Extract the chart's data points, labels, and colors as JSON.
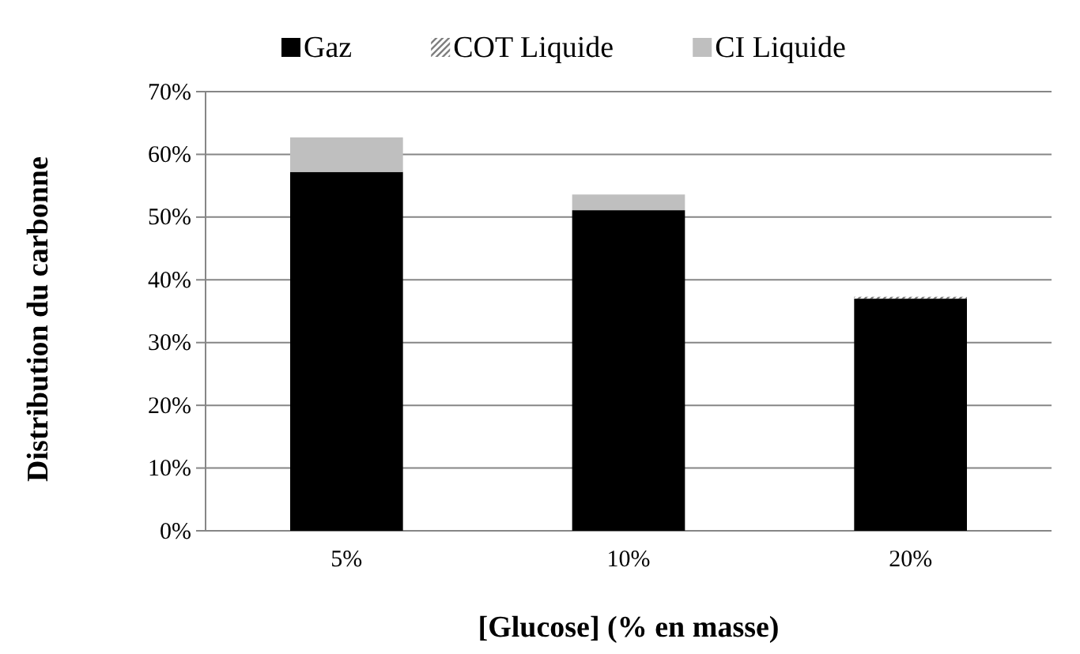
{
  "chart_data": {
    "type": "bar",
    "stacked": true,
    "xlabel": "[Glucose] (% en masse)",
    "ylabel": "Distribution du carbonne",
    "categories": [
      "5%",
      "10%",
      "20%"
    ],
    "series": [
      {
        "name": "Gaz",
        "color": "#000000",
        "values": [
          57.2,
          51.1,
          37.0
        ]
      },
      {
        "name": "COT Liquide",
        "color": "#7f7f7f",
        "values": [
          0,
          0,
          0.3
        ]
      },
      {
        "name": "CI Liquide",
        "color": "#bfbfbf",
        "values": [
          5.5,
          2.5,
          0
        ]
      }
    ],
    "ylim": [
      0,
      70
    ],
    "yticks": [
      {
        "value": 0,
        "label": "0%"
      },
      {
        "value": 10,
        "label": "10%"
      },
      {
        "value": 20,
        "label": "20%"
      },
      {
        "value": 30,
        "label": "30%"
      },
      {
        "value": 40,
        "label": "40%"
      },
      {
        "value": 50,
        "label": "50%"
      },
      {
        "value": 60,
        "label": "60%"
      },
      {
        "value": 70,
        "label": "70%"
      }
    ],
    "grid": "y",
    "legend": "top"
  }
}
